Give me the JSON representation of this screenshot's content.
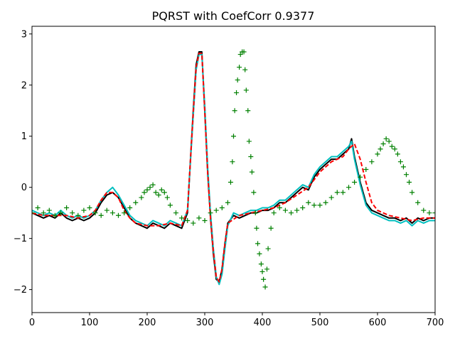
{
  "chart_data": {
    "type": "line",
    "title": "PQRST with CoefCorr 0.9377",
    "xlabel": "",
    "ylabel": "",
    "xlim": [
      0,
      700
    ],
    "ylim": [
      -2.45,
      3.15
    ],
    "x_ticks": [
      0,
      100,
      200,
      300,
      400,
      500,
      600,
      700
    ],
    "y_ticks": [
      -2,
      -1,
      0,
      1,
      2,
      3
    ],
    "grid": false,
    "legend": "none",
    "series": [
      {
        "style": "solid",
        "color": "#000000",
        "marker": "none",
        "x": [
          0,
          10,
          20,
          30,
          40,
          50,
          60,
          70,
          80,
          90,
          100,
          110,
          120,
          130,
          140,
          150,
          160,
          170,
          180,
          190,
          200,
          210,
          220,
          230,
          240,
          250,
          260,
          270,
          280,
          285,
          290,
          295,
          300,
          305,
          310,
          315,
          320,
          325,
          330,
          335,
          340,
          350,
          360,
          370,
          380,
          390,
          400,
          410,
          420,
          430,
          440,
          450,
          460,
          470,
          480,
          490,
          500,
          510,
          520,
          530,
          540,
          550,
          555,
          560,
          570,
          580,
          590,
          600,
          610,
          620,
          630,
          640,
          650,
          660,
          670,
          680,
          690,
          700
        ],
        "y": [
          -0.5,
          -0.55,
          -0.6,
          -0.55,
          -0.6,
          -0.5,
          -0.6,
          -0.65,
          -0.6,
          -0.65,
          -0.6,
          -0.5,
          -0.3,
          -0.15,
          -0.1,
          -0.2,
          -0.4,
          -0.6,
          -0.7,
          -0.75,
          -0.8,
          -0.7,
          -0.75,
          -0.8,
          -0.7,
          -0.75,
          -0.8,
          -0.5,
          1.5,
          2.4,
          2.65,
          2.65,
          1.5,
          0.3,
          -0.6,
          -1.3,
          -1.8,
          -1.85,
          -1.6,
          -1.1,
          -0.7,
          -0.55,
          -0.6,
          -0.55,
          -0.5,
          -0.5,
          -0.45,
          -0.45,
          -0.4,
          -0.3,
          -0.3,
          -0.2,
          -0.1,
          0.0,
          -0.05,
          0.2,
          0.35,
          0.45,
          0.55,
          0.55,
          0.65,
          0.75,
          0.95,
          0.6,
          0.1,
          -0.3,
          -0.45,
          -0.5,
          -0.55,
          -0.6,
          -0.6,
          -0.65,
          -0.6,
          -0.7,
          -0.6,
          -0.65,
          -0.6,
          -0.6
        ]
      },
      {
        "style": "solid",
        "color": "#00bfbf",
        "marker": "none",
        "x": [
          0,
          10,
          20,
          30,
          40,
          50,
          60,
          70,
          80,
          90,
          100,
          110,
          120,
          130,
          140,
          150,
          160,
          170,
          180,
          190,
          200,
          210,
          220,
          230,
          240,
          250,
          260,
          270,
          280,
          285,
          290,
          295,
          300,
          305,
          310,
          315,
          320,
          325,
          330,
          335,
          340,
          350,
          360,
          370,
          380,
          390,
          400,
          410,
          420,
          430,
          440,
          450,
          460,
          470,
          480,
          490,
          500,
          510,
          520,
          530,
          540,
          550,
          555,
          560,
          570,
          580,
          590,
          600,
          610,
          620,
          630,
          640,
          650,
          660,
          670,
          680,
          690,
          700
        ],
        "y": [
          -0.45,
          -0.5,
          -0.55,
          -0.5,
          -0.55,
          -0.45,
          -0.55,
          -0.6,
          -0.55,
          -0.6,
          -0.55,
          -0.45,
          -0.25,
          -0.1,
          0.0,
          -0.15,
          -0.35,
          -0.55,
          -0.65,
          -0.7,
          -0.75,
          -0.65,
          -0.7,
          -0.75,
          -0.65,
          -0.7,
          -0.75,
          -0.45,
          1.4,
          2.3,
          2.6,
          2.6,
          1.6,
          0.4,
          -0.5,
          -1.2,
          -1.75,
          -1.9,
          -1.7,
          -1.2,
          -0.75,
          -0.5,
          -0.55,
          -0.5,
          -0.45,
          -0.45,
          -0.4,
          -0.4,
          -0.35,
          -0.25,
          -0.25,
          -0.15,
          -0.05,
          0.05,
          0.0,
          0.25,
          0.4,
          0.5,
          0.6,
          0.6,
          0.7,
          0.8,
          0.9,
          0.55,
          0.05,
          -0.35,
          -0.5,
          -0.55,
          -0.6,
          -0.65,
          -0.65,
          -0.7,
          -0.65,
          -0.75,
          -0.65,
          -0.7,
          -0.65,
          -0.65
        ]
      },
      {
        "style": "dashed",
        "color": "#ff0000",
        "marker": "none",
        "x": [
          0,
          20,
          40,
          60,
          80,
          100,
          110,
          120,
          130,
          140,
          150,
          160,
          170,
          180,
          200,
          220,
          240,
          260,
          270,
          280,
          285,
          290,
          295,
          300,
          305,
          310,
          315,
          320,
          325,
          330,
          335,
          340,
          360,
          380,
          400,
          420,
          440,
          460,
          480,
          500,
          520,
          540,
          550,
          560,
          570,
          580,
          590,
          600,
          620,
          640,
          660,
          680,
          700
        ],
        "y": [
          -0.5,
          -0.55,
          -0.55,
          -0.55,
          -0.6,
          -0.55,
          -0.45,
          -0.25,
          -0.1,
          -0.1,
          -0.2,
          -0.45,
          -0.6,
          -0.7,
          -0.75,
          -0.75,
          -0.7,
          -0.75,
          -0.45,
          1.45,
          2.35,
          2.62,
          2.62,
          1.5,
          0.3,
          -0.6,
          -1.25,
          -1.75,
          -1.85,
          -1.6,
          -1.1,
          -0.7,
          -0.55,
          -0.5,
          -0.45,
          -0.4,
          -0.3,
          -0.15,
          0.0,
          0.3,
          0.5,
          0.6,
          0.75,
          0.85,
          0.55,
          0.1,
          -0.3,
          -0.45,
          -0.55,
          -0.6,
          -0.65,
          -0.6,
          -0.6
        ]
      },
      {
        "style": "none",
        "color": "#008000",
        "marker": "plus",
        "x": [
          0,
          10,
          20,
          30,
          40,
          50,
          60,
          70,
          80,
          90,
          100,
          110,
          120,
          130,
          140,
          150,
          160,
          170,
          180,
          190,
          195,
          200,
          205,
          210,
          215,
          220,
          225,
          230,
          235,
          240,
          250,
          260,
          270,
          280,
          290,
          300,
          310,
          320,
          330,
          340,
          345,
          348,
          350,
          352,
          355,
          357,
          360,
          362,
          365,
          368,
          370,
          372,
          375,
          377,
          380,
          382,
          385,
          388,
          390,
          392,
          395,
          398,
          400,
          402,
          405,
          408,
          410,
          415,
          420,
          430,
          440,
          450,
          460,
          470,
          480,
          490,
          500,
          510,
          520,
          530,
          540,
          550,
          560,
          570,
          580,
          590,
          600,
          605,
          610,
          615,
          620,
          625,
          630,
          635,
          640,
          645,
          650,
          655,
          660,
          670,
          680,
          690,
          700
        ],
        "y": [
          -0.5,
          -0.4,
          -0.5,
          -0.45,
          -0.55,
          -0.5,
          -0.4,
          -0.5,
          -0.55,
          -0.45,
          -0.4,
          -0.5,
          -0.55,
          -0.45,
          -0.5,
          -0.55,
          -0.5,
          -0.4,
          -0.3,
          -0.2,
          -0.1,
          -0.05,
          0.0,
          0.05,
          -0.1,
          -0.15,
          -0.05,
          -0.1,
          -0.2,
          -0.35,
          -0.5,
          -0.6,
          -0.65,
          -0.7,
          -0.6,
          -0.65,
          -0.5,
          -0.45,
          -0.4,
          -0.3,
          0.1,
          0.5,
          1.0,
          1.5,
          1.85,
          2.1,
          2.35,
          2.6,
          2.65,
          2.65,
          2.3,
          1.9,
          1.5,
          0.9,
          0.6,
          0.3,
          -0.1,
          -0.5,
          -0.8,
          -1.1,
          -1.3,
          -1.5,
          -1.65,
          -1.8,
          -1.95,
          -1.6,
          -1.2,
          -0.8,
          -0.5,
          -0.4,
          -0.45,
          -0.5,
          -0.45,
          -0.4,
          -0.3,
          -0.35,
          -0.35,
          -0.3,
          -0.2,
          -0.1,
          -0.1,
          0.0,
          0.1,
          0.2,
          0.35,
          0.5,
          0.65,
          0.75,
          0.85,
          0.95,
          0.9,
          0.8,
          0.75,
          0.65,
          0.5,
          0.4,
          0.25,
          0.1,
          -0.1,
          -0.3,
          -0.45,
          -0.5,
          -0.5
        ]
      }
    ]
  }
}
